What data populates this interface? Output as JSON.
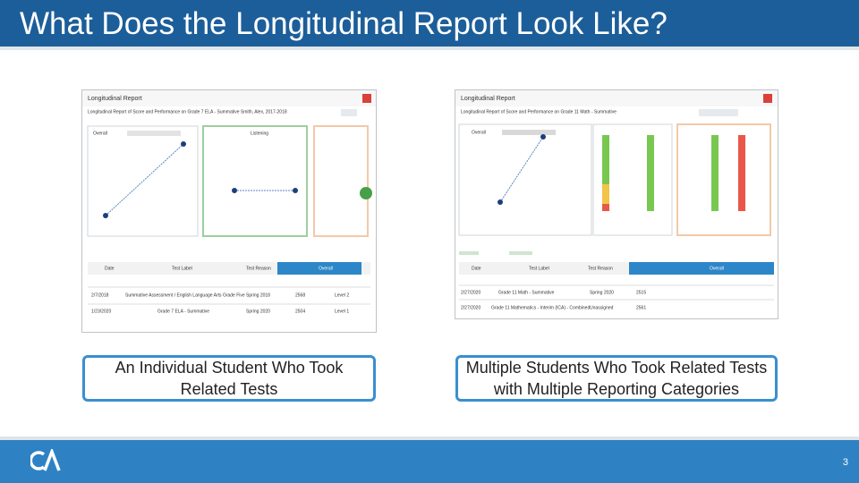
{
  "title": "What Does the Longitudinal Report Look Like?",
  "panels": [
    {
      "caption": "An Individual Student Who Took Related Tests",
      "screenshot": {
        "header": "Longitudinal Report",
        "subtitle": "Longitudinal Report of Score and Performance on Grade 7 ELA - Summative Smith, Alex, 2017-2018",
        "tabs": [
          "Overall",
          "Listening"
        ],
        "table": {
          "columns": [
            "Date",
            "Test Label",
            "Test Reason",
            "Overall"
          ],
          "rows": [
            [
              "2/7/2018",
              "Summative Assessment / English Language Arts Grade Five",
              "Spring 2018",
              "2568",
              "Level 2"
            ],
            [
              "1/23/2020",
              "Grade 7 ELA - Summative",
              "Spring 2020",
              "2504",
              "Level 1"
            ]
          ]
        }
      }
    },
    {
      "caption": "Multiple Students Who Took Related Tests with Multiple Reporting Categories",
      "screenshot": {
        "header": "Longitudinal Report",
        "subtitle": "Longitudinal Report of Score and Performance on Grade 11 Math - Summative",
        "tabs": [
          "Overall"
        ],
        "table": {
          "columns": [
            "Date",
            "Test Label",
            "Test Reason",
            "Overall"
          ],
          "rows": [
            [
              "2/27/2020",
              "Grade 11 Math - Summative",
              "Spring 2020",
              "2515"
            ],
            [
              "2/27/2020",
              "Grade 11 Mathematics - Interim (ICA) - Combined",
              "Unassigned",
              "2561"
            ]
          ]
        }
      }
    }
  ],
  "page_number": "3"
}
